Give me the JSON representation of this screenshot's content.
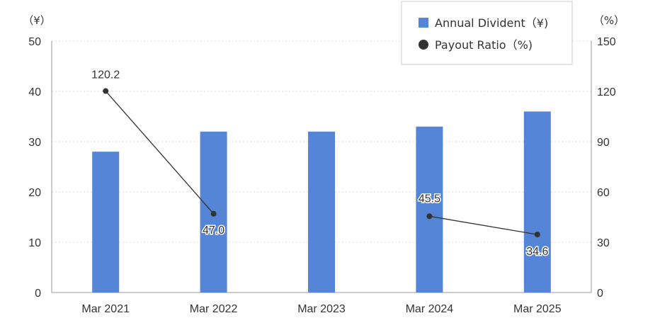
{
  "chart_data": {
    "type": "bar",
    "categories": [
      "Mar 2021",
      "Mar 2022",
      "Mar 2023",
      "Mar 2024",
      "Mar 2025"
    ],
    "series": [
      {
        "name": "Annual Divident（¥)",
        "type": "bar",
        "axis": "left",
        "color": "#5585d6",
        "values": [
          28,
          32,
          32,
          33,
          36
        ]
      },
      {
        "name": "Payout Ratio（%)",
        "type": "line",
        "axis": "right",
        "color": "#333333",
        "values": [
          120.2,
          47.0,
          null,
          45.5,
          34.6
        ],
        "labels": [
          "120.2",
          "47.0",
          "",
          "45.5",
          "34.6"
        ]
      }
    ],
    "left_axis": {
      "unit_label": "（¥）",
      "ylim": [
        0,
        50
      ],
      "ticks": [
        "0",
        "10",
        "20",
        "30",
        "40",
        "50"
      ]
    },
    "right_axis": {
      "unit_label": "（%）",
      "ylim": [
        0,
        150
      ],
      "ticks": [
        "0",
        "30",
        "60",
        "90",
        "120",
        "150"
      ]
    },
    "grid": true,
    "legend_position": "top-right"
  }
}
